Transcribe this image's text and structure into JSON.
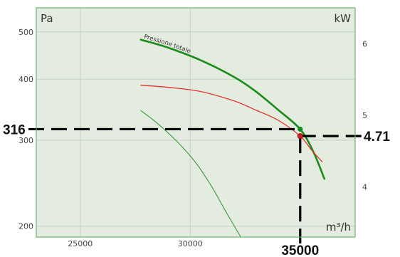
{
  "chart_data": {
    "type": "line",
    "x_unit": "m³/h",
    "y_left_unit": "Pa",
    "y_right_unit": "kW",
    "x_ticks": [
      25000,
      30000
    ],
    "y_left_ticks": [
      200,
      300,
      400,
      500
    ],
    "y_right_ticks": [
      4,
      5,
      6
    ],
    "xlim": [
      23000,
      37500
    ],
    "ylim_left": [
      190,
      560
    ],
    "ylim_right": [
      3.3,
      6.5
    ],
    "series": [
      {
        "name": "Pressione totale",
        "axis": "left",
        "color": "#1a8a1a",
        "points": [
          [
            27750,
            482
          ],
          [
            29000,
            464
          ],
          [
            30500,
            437
          ],
          [
            32000,
            404
          ],
          [
            33000,
            377
          ],
          [
            34000,
            346
          ],
          [
            35000,
            316
          ],
          [
            35600,
            284
          ],
          [
            36100,
            250
          ]
        ]
      },
      {
        "name": "",
        "axis": "right",
        "color": "#e53333",
        "points": [
          [
            27750,
            5.42
          ],
          [
            29000,
            5.39
          ],
          [
            30500,
            5.33
          ],
          [
            32000,
            5.2
          ],
          [
            33000,
            5.07
          ],
          [
            34000,
            4.93
          ],
          [
            35000,
            4.71
          ],
          [
            35500,
            4.52
          ],
          [
            36000,
            4.35
          ]
        ]
      },
      {
        "name": "",
        "axis": "left",
        "color": "#3a9a3a",
        "points": [
          [
            27750,
            345
          ],
          [
            28500,
            325
          ],
          [
            29500,
            295
          ],
          [
            30300,
            268
          ],
          [
            31000,
            240
          ],
          [
            31600,
            215
          ],
          [
            32300,
            190
          ]
        ]
      }
    ],
    "operating_point": {
      "x": 35000,
      "pressure": 316,
      "power": 4.71,
      "x_label": "35000",
      "pressure_label": "316",
      "power_label": "4.71"
    },
    "colors": {
      "background": "#e3ecdf",
      "frame": "#6fb36f",
      "grid": "#c7d3c3",
      "guide": "#000000",
      "pressure_point": "#1a8a1a",
      "power_point": "#cc1f1f"
    }
  }
}
